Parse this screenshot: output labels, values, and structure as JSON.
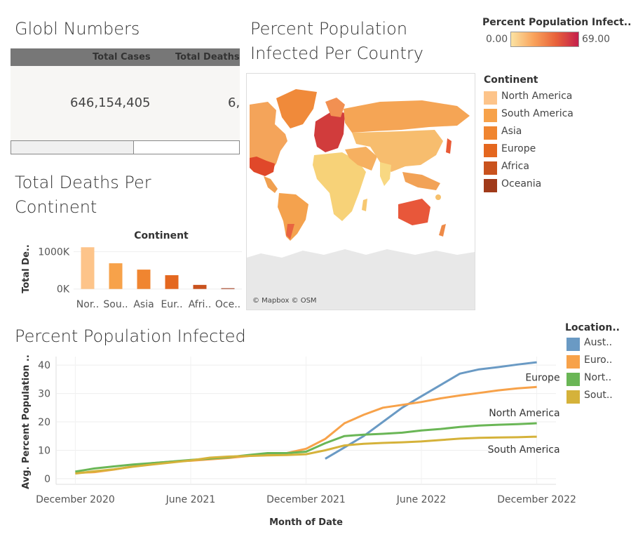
{
  "global": {
    "title": "Globl Numbers",
    "columns": [
      "Total Cases",
      "Total Deaths"
    ],
    "total_cases": "646,154,405",
    "total_deaths_partial": "6,"
  },
  "deaths_chart": {
    "title_line1": "Total Deaths Per",
    "title_line2": "Continent"
  },
  "map": {
    "title_line1": "Percent Population",
    "title_line2": "Infected Per Country",
    "attribution": "© Mapbox © OSM"
  },
  "color_legend": {
    "title": "Percent Population Infect..",
    "min": "0.00",
    "max": "69.00",
    "colors": [
      "#fbe3a3",
      "#f9a35c",
      "#e8623a",
      "#c41f4c"
    ]
  },
  "continent_legend": {
    "title": "Continent",
    "items": [
      {
        "label": "North America",
        "color": "#fdc48a"
      },
      {
        "label": "South America",
        "color": "#f7a24a"
      },
      {
        "label": "Asia",
        "color": "#f08530"
      },
      {
        "label": "Europe",
        "color": "#e4671f"
      },
      {
        "label": "Africa",
        "color": "#c9521d"
      },
      {
        "label": "Oceania",
        "color": "#a03a1a"
      }
    ]
  },
  "line_chart": {
    "title": "Percent Population Infected"
  },
  "location_legend": {
    "title": "Location..",
    "items": [
      {
        "label": "Aust..",
        "color": "#6a9ac4"
      },
      {
        "label": "Euro..",
        "color": "#f7a24a"
      },
      {
        "label": "Nort..",
        "color": "#6ab656"
      },
      {
        "label": "Sout..",
        "color": "#d5b23a"
      }
    ]
  },
  "chart_data": [
    {
      "type": "bar",
      "title": "Total Deaths Per Continent",
      "header": "Continent",
      "xlabel": "",
      "ylabel": "Total De..",
      "categories": [
        "Nor..",
        "Sou..",
        "Asia",
        "Eur..",
        "Afri..",
        "Oce.."
      ],
      "values": [
        1120000,
        690000,
        520000,
        370000,
        110000,
        20000
      ],
      "colors": [
        "#fdc48a",
        "#f7a24a",
        "#f08530",
        "#e4671f",
        "#c9521d",
        "#a03a1a"
      ],
      "yticks": [
        0,
        1000000
      ],
      "ytick_labels": [
        "0K",
        "1000K"
      ],
      "ylim": [
        -100000,
        1200000
      ]
    },
    {
      "type": "line",
      "title": "Percent Population Infected",
      "xlabel": "Month of Date",
      "ylabel": "Avg. Percent Population ..",
      "x_ticks": [
        "December 2020",
        "June 2021",
        "December 2021",
        "June 2022",
        "December 2022"
      ],
      "x_tick_months": [
        0,
        6,
        12,
        18,
        24
      ],
      "xlim": [
        -1,
        25
      ],
      "ylim": [
        -2,
        43
      ],
      "yticks": [
        0,
        10,
        20,
        30,
        40
      ],
      "series": [
        {
          "name": "Aust..",
          "color": "#6a9ac4",
          "points": [
            [
              13,
              7
            ],
            [
              14,
              11
            ],
            [
              15,
              15
            ],
            [
              16,
              20
            ],
            [
              17,
              25
            ],
            [
              18,
              29
            ],
            [
              19,
              33
            ],
            [
              20,
              37
            ],
            [
              21,
              38.5
            ],
            [
              22,
              39.3
            ],
            [
              23,
              40.2
            ],
            [
              24,
              41
            ]
          ]
        },
        {
          "name": "Europe",
          "color": "#f7a24a",
          "points": [
            [
              0,
              2
            ],
            [
              1,
              2.3
            ],
            [
              2,
              3.2
            ],
            [
              3,
              4.3
            ],
            [
              4,
              5.5
            ],
            [
              5,
              6
            ],
            [
              6,
              6.3
            ],
            [
              7,
              6.8
            ],
            [
              8,
              7.3
            ],
            [
              9,
              8
            ],
            [
              10,
              8.8
            ],
            [
              11,
              9
            ],
            [
              12,
              10.5
            ],
            [
              13,
              14
            ],
            [
              14,
              19.5
            ],
            [
              15,
              22.5
            ],
            [
              16,
              25
            ],
            [
              17,
              26
            ],
            [
              18,
              27
            ],
            [
              19,
              28.3
            ],
            [
              20,
              29.3
            ],
            [
              21,
              30.2
            ],
            [
              22,
              31.1
            ],
            [
              23,
              31.8
            ],
            [
              24,
              32.3
            ]
          ]
        },
        {
          "name": "North America",
          "color": "#6ab656",
          "points": [
            [
              0,
              2.5
            ],
            [
              1,
              3.6
            ],
            [
              2,
              4.3
            ],
            [
              3,
              5
            ],
            [
              4,
              5.5
            ],
            [
              5,
              6
            ],
            [
              6,
              6.6
            ],
            [
              7,
              7.1
            ],
            [
              8,
              7.6
            ],
            [
              9,
              8.3
            ],
            [
              10,
              9
            ],
            [
              11,
              9
            ],
            [
              12,
              9.5
            ],
            [
              13,
              12.5
            ],
            [
              14,
              15
            ],
            [
              15,
              15.5
            ],
            [
              16,
              15.8
            ],
            [
              17,
              16.2
            ],
            [
              18,
              17
            ],
            [
              19,
              17.5
            ],
            [
              20,
              18.2
            ],
            [
              21,
              18.7
            ],
            [
              22,
              19
            ],
            [
              23,
              19.2
            ],
            [
              24,
              19.5
            ]
          ]
        },
        {
          "name": "South America",
          "color": "#d5b23a",
          "points": [
            [
              0,
              1.8
            ],
            [
              1,
              2.6
            ],
            [
              2,
              3.3
            ],
            [
              3,
              4.2
            ],
            [
              4,
              5
            ],
            [
              5,
              5.7
            ],
            [
              6,
              6.4
            ],
            [
              7,
              7.4
            ],
            [
              8,
              7.8
            ],
            [
              9,
              8
            ],
            [
              10,
              8.2
            ],
            [
              11,
              8.3
            ],
            [
              12,
              8.6
            ],
            [
              13,
              10
            ],
            [
              14,
              11.7
            ],
            [
              15,
              12.3
            ],
            [
              16,
              12.6
            ],
            [
              17,
              12.8
            ],
            [
              18,
              13.1
            ],
            [
              19,
              13.6
            ],
            [
              20,
              14.1
            ],
            [
              21,
              14.4
            ],
            [
              22,
              14.5
            ],
            [
              23,
              14.6
            ],
            [
              24,
              14.8
            ]
          ]
        }
      ],
      "end_labels": [
        "Europe",
        "North America",
        "South America"
      ]
    }
  ]
}
